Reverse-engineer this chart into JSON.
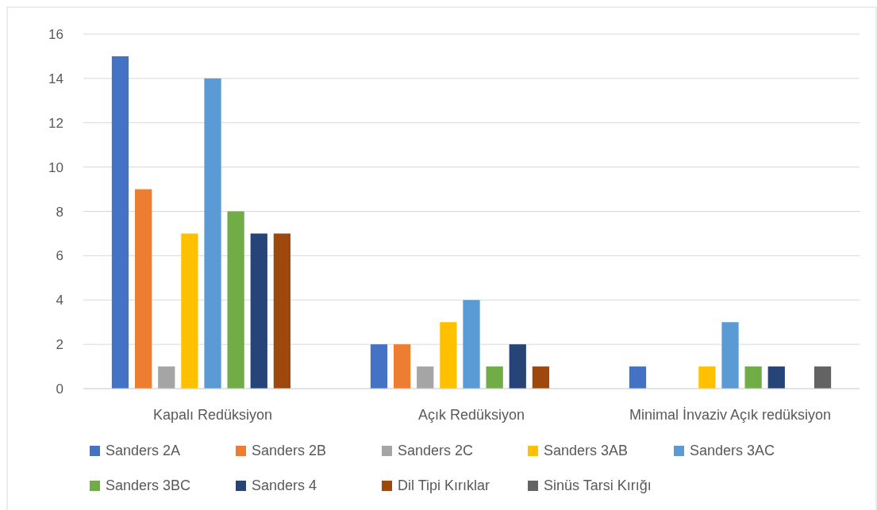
{
  "chart_data": {
    "type": "bar",
    "categories": [
      "Kapalı Redüksiyon",
      "Açık Redüksiyon",
      "Minimal İnvaziv Açık redüksiyon"
    ],
    "series": [
      {
        "name": "Sanders 2A",
        "color": "#4472c4",
        "values": [
          15,
          2,
          1
        ]
      },
      {
        "name": "Sanders 2B",
        "color": "#ed7d31",
        "values": [
          9,
          2,
          0
        ]
      },
      {
        "name": "Sanders 2C",
        "color": "#a5a5a5",
        "values": [
          1,
          1,
          0
        ]
      },
      {
        "name": "Sanders 3AB",
        "color": "#ffc000",
        "values": [
          7,
          3,
          1
        ]
      },
      {
        "name": "Sanders 3AC",
        "color": "#5b9bd5",
        "values": [
          14,
          4,
          3
        ]
      },
      {
        "name": "Sanders 3BC",
        "color": "#70ad47",
        "values": [
          8,
          1,
          1
        ]
      },
      {
        "name": "Sanders 4",
        "color": "#264478",
        "values": [
          7,
          2,
          1
        ]
      },
      {
        "name": "Dil Tipi Kırıklar",
        "color": "#9e480e",
        "values": [
          7,
          1,
          0
        ]
      },
      {
        "name": "Sinüs Tarsi Kırığı",
        "color": "#636363",
        "values": [
          0,
          0,
          1
        ]
      }
    ],
    "ylim": [
      0,
      16
    ],
    "yticks": [
      0,
      2,
      4,
      6,
      8,
      10,
      12,
      14,
      16
    ],
    "grid": "y",
    "legend": "bottom"
  }
}
